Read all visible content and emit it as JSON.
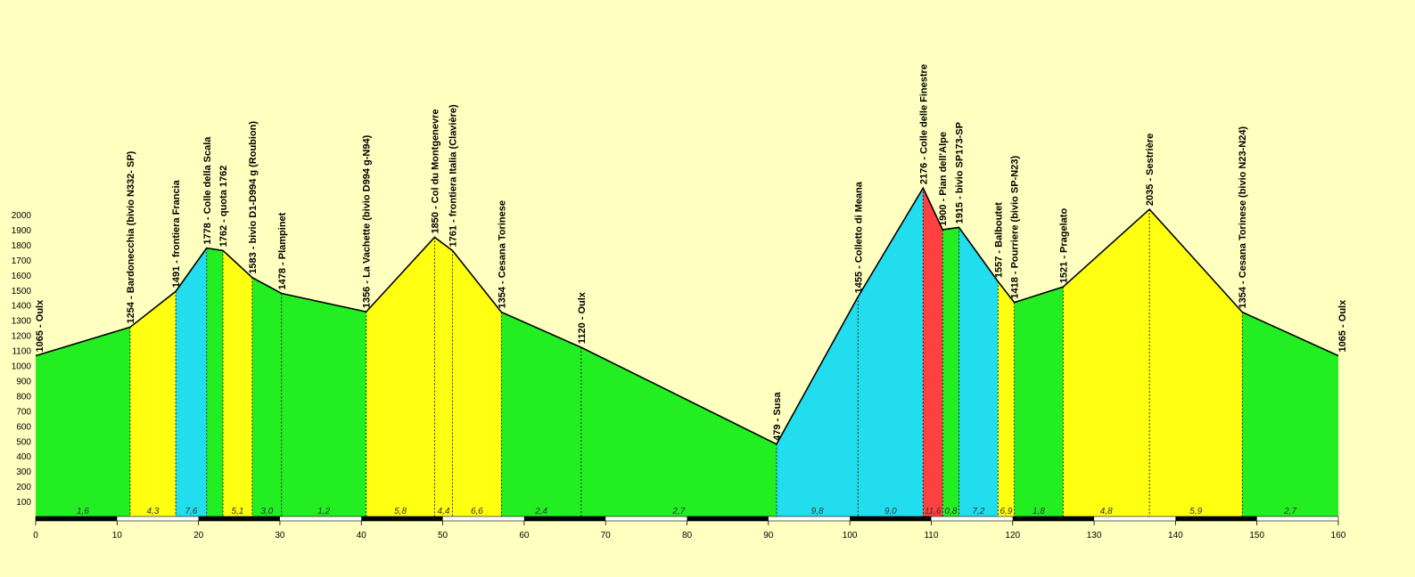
{
  "chart_data": {
    "type": "area",
    "title": "",
    "xlabel": "",
    "ylabel": "",
    "xlim": [
      0,
      160
    ],
    "ylim": [
      0,
      2000
    ],
    "x_ticks": [
      0,
      10,
      20,
      30,
      40,
      50,
      60,
      70,
      80,
      90,
      100,
      110,
      120,
      130,
      140,
      150,
      160
    ],
    "y_ticks": [
      100,
      200,
      300,
      400,
      500,
      600,
      700,
      800,
      900,
      1000,
      1100,
      1200,
      1300,
      1400,
      1500,
      1600,
      1700,
      1800,
      1900,
      2000
    ],
    "profile": [
      {
        "km": 0,
        "ele": 1065
      },
      {
        "km": 11.6,
        "ele": 1254
      },
      {
        "km": 17.2,
        "ele": 1491
      },
      {
        "km": 21.0,
        "ele": 1778
      },
      {
        "km": 23.0,
        "ele": 1762
      },
      {
        "km": 26.6,
        "ele": 1583
      },
      {
        "km": 30.2,
        "ele": 1478
      },
      {
        "km": 40.6,
        "ele": 1356
      },
      {
        "km": 49.0,
        "ele": 1850
      },
      {
        "km": 51.2,
        "ele": 1761
      },
      {
        "km": 57.2,
        "ele": 1354
      },
      {
        "km": 67.0,
        "ele": 1120
      },
      {
        "km": 91.0,
        "ele": 479
      },
      {
        "km": 101.0,
        "ele": 1455
      },
      {
        "km": 109.0,
        "ele": 2176
      },
      {
        "km": 111.4,
        "ele": 1900
      },
      {
        "km": 113.4,
        "ele": 1915
      },
      {
        "km": 118.2,
        "ele": 1557
      },
      {
        "km": 120.2,
        "ele": 1418
      },
      {
        "km": 126.2,
        "ele": 1521
      },
      {
        "km": 136.8,
        "ele": 2035
      },
      {
        "km": 148.2,
        "ele": 1354
      },
      {
        "km": 160.0,
        "ele": 1065
      }
    ],
    "waypoints": [
      {
        "label": "1065 - Oulx"
      },
      {
        "label": "1254 - Bardonecchia (bivio N332- SP)"
      },
      {
        "label": "1491 -  frontiera Francia"
      },
      {
        "label": "1778 - Colle della Scala"
      },
      {
        "label": "1762 - quota 1762"
      },
      {
        "label": "1583 - bivio D1-D994 g  (Roubion)"
      },
      {
        "label": "1478 - Plampinet"
      },
      {
        "label": "1356 - La Vachette (bivio D994 g-N94)"
      },
      {
        "label": "1850 - Col du Montgenevre"
      },
      {
        "label": "1761 - frontiera Italia  (Clavière)"
      },
      {
        "label": "1354 - Cesana Torinese"
      },
      {
        "label": "1120 - Oulx"
      },
      {
        "label": "479 - Susa"
      },
      {
        "label": "1455 - Colletto di Meana"
      },
      {
        "label": "2176 - Colle delle Finestre"
      },
      {
        "label": "1900 - Pian dell'Alpe"
      },
      {
        "label": "1915 - bivio SP173-SP"
      },
      {
        "label": "1557 - Balboutet"
      },
      {
        "label": "1418 - Pourriere (bivio SP-N23)"
      },
      {
        "label": "1521 - Pragelato"
      },
      {
        "label": "2035 - Sestrière"
      },
      {
        "label": "1354 - Cesana Torinese (bivio N23-N24)"
      },
      {
        "label": "1065 - Oulx"
      }
    ],
    "segments": [
      {
        "grade": "1,6",
        "color": "#22ee22"
      },
      {
        "grade": "4,3",
        "color": "#ffff11"
      },
      {
        "grade": "7,6",
        "color": "#22ddee"
      },
      {
        "grade": "",
        "color": "#22ee22"
      },
      {
        "grade": "5,1",
        "color": "#ffff11"
      },
      {
        "grade": "3,0",
        "color": "#22ee22"
      },
      {
        "grade": "1,2",
        "color": "#22ee22"
      },
      {
        "grade": "5,8",
        "color": "#ffff11"
      },
      {
        "grade": "4,4",
        "color": "#ffff11"
      },
      {
        "grade": "6,6",
        "color": "#ffff11"
      },
      {
        "grade": "2,4",
        "color": "#22ee22"
      },
      {
        "grade": "2,7",
        "color": "#22ee22"
      },
      {
        "grade": "9,8",
        "color": "#22ddee"
      },
      {
        "grade": "9,0",
        "color": "#22ddee"
      },
      {
        "grade": "11,6",
        "color": "#ff4040"
      },
      {
        "grade": "0,8",
        "color": "#22ee22"
      },
      {
        "grade": "7,2",
        "color": "#22ddee"
      },
      {
        "grade": "6,9",
        "color": "#ffff11"
      },
      {
        "grade": "1,8",
        "color": "#22ee22"
      },
      {
        "grade": "4,8",
        "color": "#ffff11"
      },
      {
        "grade": "5,9",
        "color": "#ffff11"
      },
      {
        "grade": "2,7",
        "color": "#22ee22"
      }
    ]
  }
}
